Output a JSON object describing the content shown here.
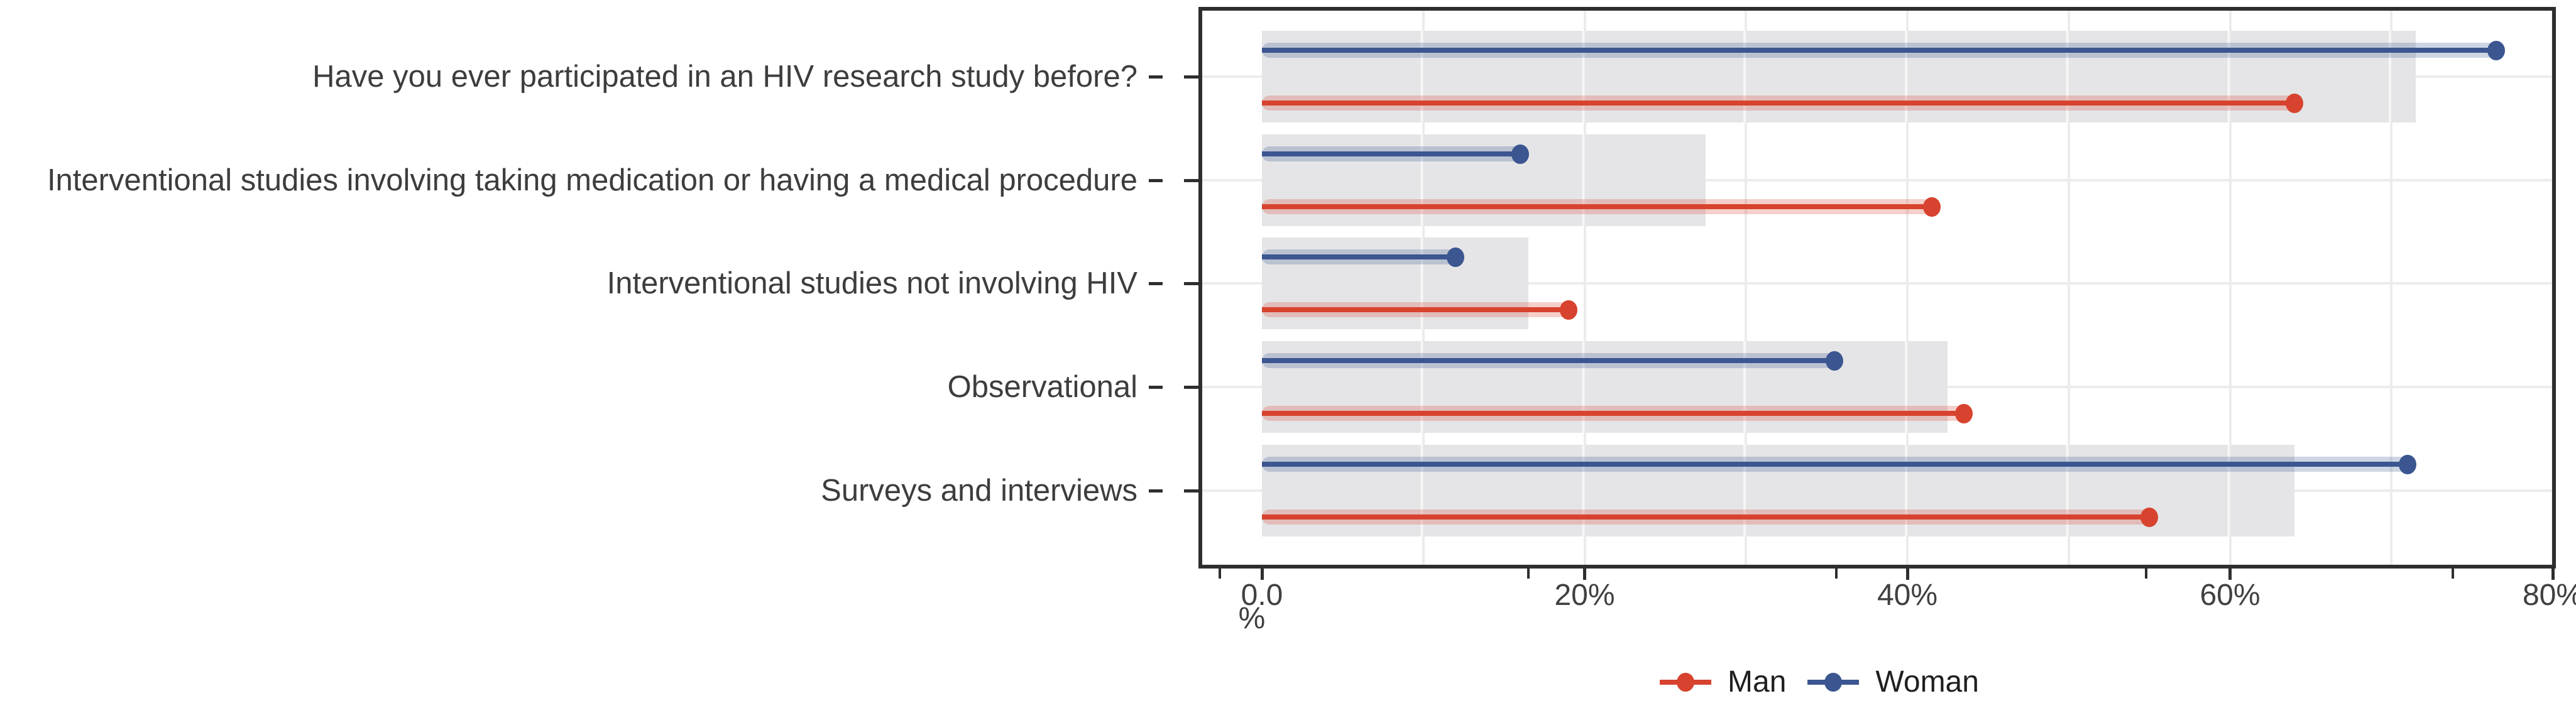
{
  "chart_data": {
    "type": "lollipop-bar",
    "title": "",
    "orientation": "horizontal",
    "categories": [
      "Have you ever participated in an HIV research study before?",
      "Interventional studies involving taking medication or having a medical procedure",
      "Interventional studies not involving HIV",
      "Observational",
      "Surveys and interviews"
    ],
    "series": [
      {
        "name": "Man",
        "type": "lollipop",
        "color": "#d7432e",
        "values": [
          64,
          41.5,
          19,
          43.5,
          55
        ]
      },
      {
        "name": "Woman",
        "type": "lollipop",
        "color": "#3b5690",
        "values": [
          76.5,
          16,
          12,
          35.5,
          71
        ]
      }
    ],
    "background_bars": {
      "color": "#e5e5e7",
      "values": [
        71.5,
        27.5,
        16.5,
        42.5,
        64
      ]
    },
    "xlabel": "%",
    "ylabel": "",
    "xlim": [
      0,
      80
    ],
    "x_ticks": [
      {
        "value": 0,
        "label": "0.0"
      },
      {
        "value": 20,
        "label": "20%"
      },
      {
        "value": 40,
        "label": "40%"
      },
      {
        "value": 60,
        "label": "60%"
      },
      {
        "value": 80,
        "label": "80%"
      }
    ],
    "x_extra_ticks": [
      -2.6,
      16.5,
      35.6,
      54.8,
      73.8
    ],
    "x_minor_gridlines": [
      10,
      30,
      50,
      70
    ],
    "grid": "on",
    "legend_position": "bottom",
    "legend": [
      {
        "label": "Man",
        "color": "#d7432e"
      },
      {
        "label": "Woman",
        "color": "#3b5690"
      }
    ]
  },
  "colors": {
    "man": "#d7432e",
    "woman": "#3b5690",
    "bar": "#e5e5e7",
    "grid": "#ececec",
    "border": "#2e2e2e",
    "text": "#3d3d3d"
  }
}
